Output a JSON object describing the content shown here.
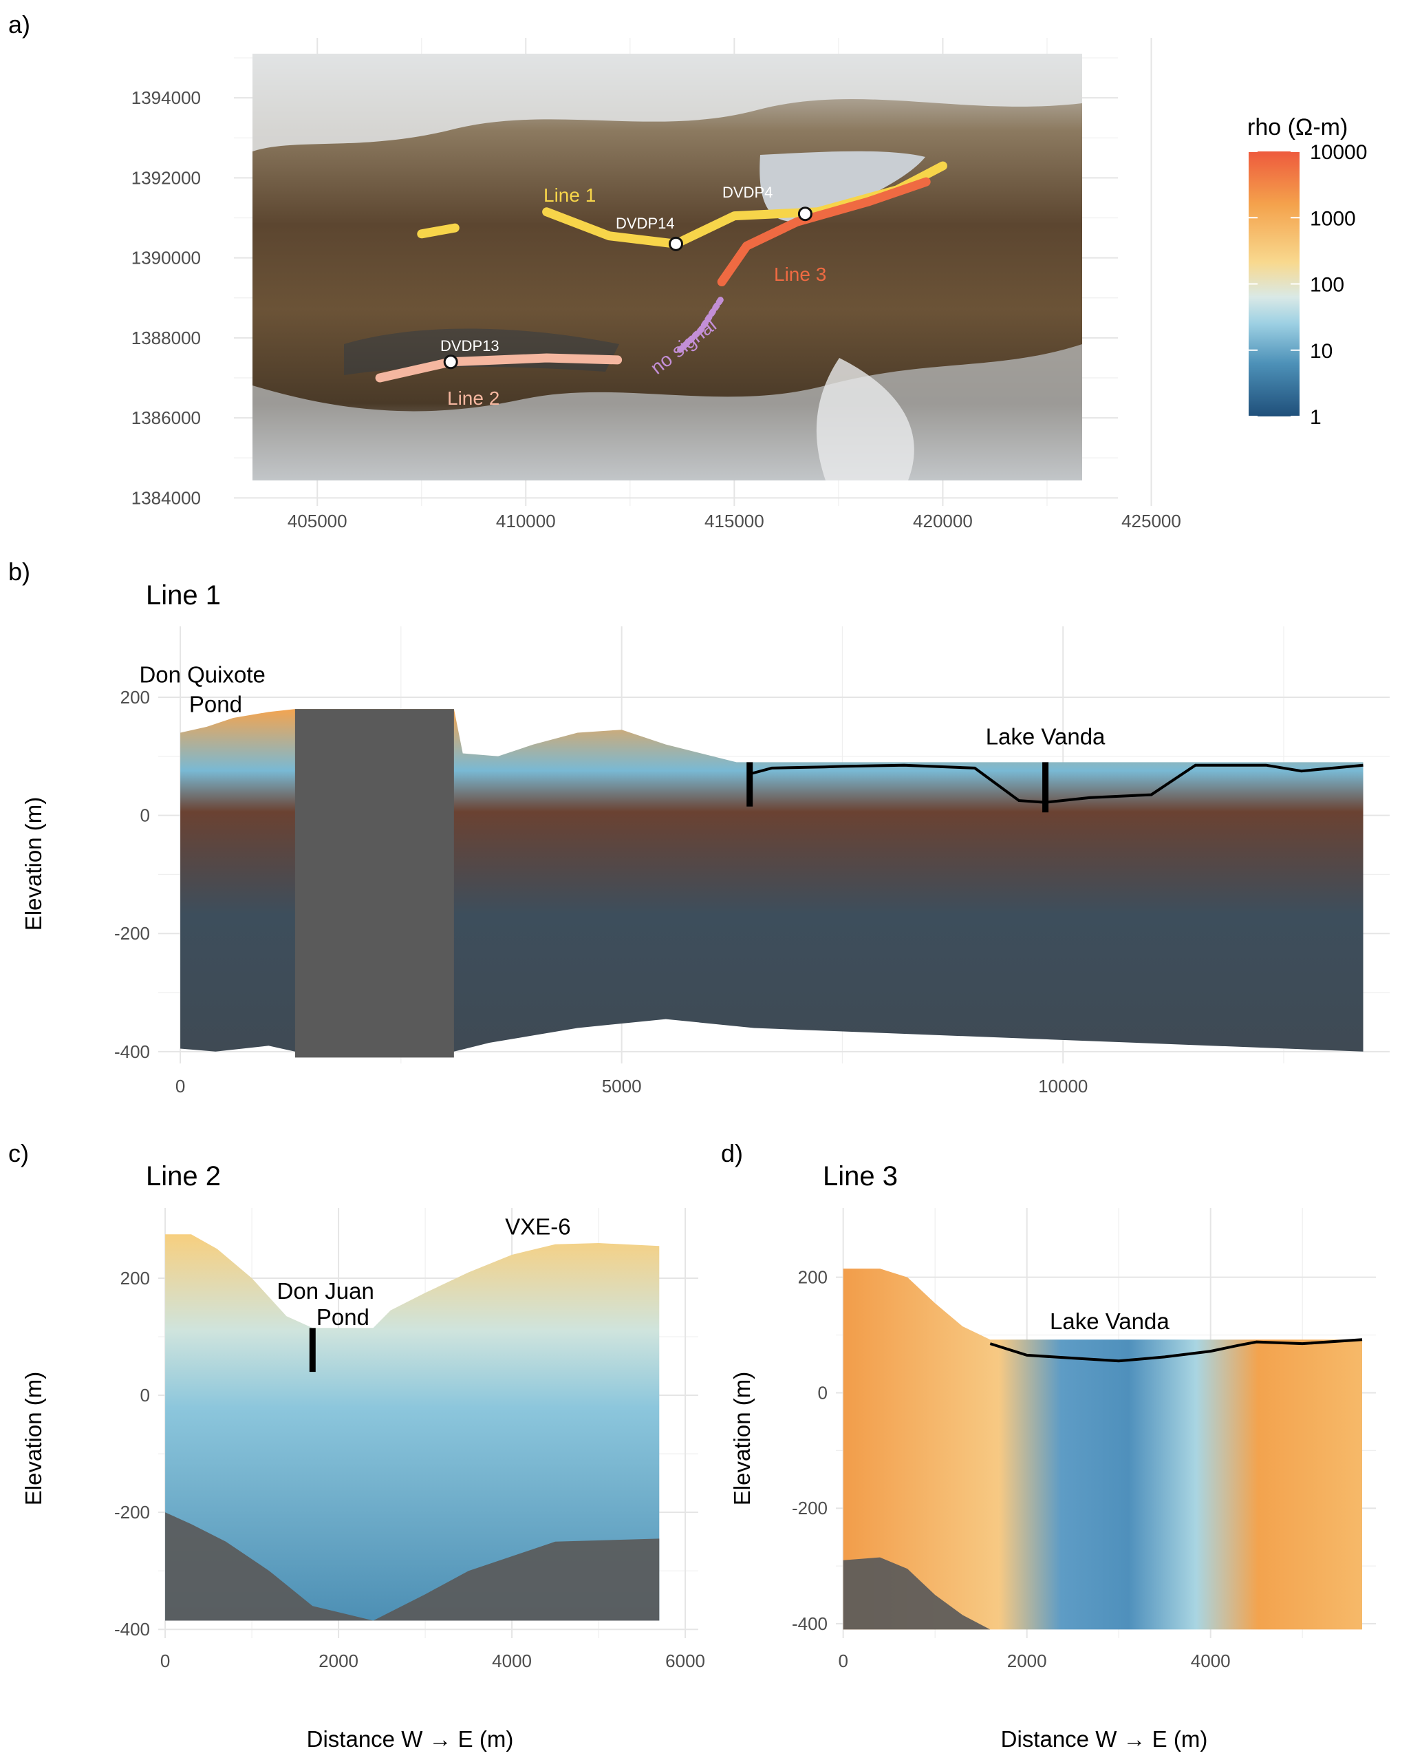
{
  "panel_labels": {
    "a": "a)",
    "b": "b)",
    "c": "c)",
    "d": "d)"
  },
  "colors": {
    "line1": "#f7d54a",
    "line2": "#f5b7a0",
    "line3": "#ef6a42",
    "no_signal": "#c38fd6",
    "lake": "#c9ced3",
    "masked": "#5a5a5a",
    "grid": "#e5e5e5"
  },
  "colorbar": {
    "title": "rho (Ω-m)",
    "scale": "log10",
    "ticks": [
      "10000",
      "1000",
      "100",
      "10",
      "1"
    ],
    "tick_values": [
      10000,
      1000,
      100,
      10,
      1
    ],
    "colors": [
      "#ee5a3d",
      "#f4a24c",
      "#f8d98f",
      "#a7d7e6",
      "#4d91b8",
      "#1f4f7a"
    ]
  },
  "chart_data": [
    {
      "id": "a",
      "type": "map",
      "x_ticks": [
        "405000",
        "410000",
        "415000",
        "420000",
        "425000"
      ],
      "y_ticks": [
        "1394000",
        "1392000",
        "1390000",
        "1388000",
        "1386000",
        "1384000"
      ],
      "xlim": [
        403000,
        424200
      ],
      "ylim": [
        1383800,
        1395500
      ],
      "image_extent": {
        "x": [
          404300,
          425500
        ],
        "y": [
          1384400,
          1395400
        ]
      },
      "lines": [
        {
          "name": "Line 1",
          "label": "Line 1",
          "segments": [
            [
              [
                407500,
                1390600
              ],
              [
                408300,
                1390750
              ]
            ],
            [
              [
                410500,
                1391150
              ],
              [
                412000,
                1390550
              ],
              [
                413600,
                1390350
              ],
              [
                415000,
                1391050
              ],
              [
                417000,
                1391150
              ],
              [
                418900,
                1391700
              ],
              [
                420000,
                1392300
              ]
            ]
          ]
        },
        {
          "name": "Line 2",
          "label": "Line 2",
          "segments": [
            [
              [
                406500,
                1387000
              ],
              [
                408200,
                1387400
              ],
              [
                410500,
                1387500
              ],
              [
                412200,
                1387450
              ]
            ]
          ]
        },
        {
          "name": "Line 3",
          "label": "Line 3",
          "segments": [
            [
              [
                414700,
                1389400
              ],
              [
                415300,
                1390300
              ],
              [
                416500,
                1390900
              ],
              [
                418200,
                1391400
              ],
              [
                419600,
                1391900
              ]
            ]
          ]
        },
        {
          "name": "no signal",
          "label": "no signal",
          "segments": [
            [
              [
                413700,
                1387700
              ],
              [
                414200,
                1388200
              ],
              [
                414700,
                1389000
              ]
            ]
          ]
        }
      ],
      "boreholes": [
        {
          "label": "DVDP14",
          "x": 413600,
          "y": 1390350
        },
        {
          "label": "DVDP4",
          "x": 416700,
          "y": 1391100
        },
        {
          "label": "DVDP13",
          "x": 408200,
          "y": 1387400
        }
      ]
    },
    {
      "id": "b",
      "type": "heatmap",
      "title": "Line 1",
      "xlabel": "",
      "ylabel": "Elevation (m)",
      "xlim": [
        -250,
        13700
      ],
      "ylim": [
        -420,
        320
      ],
      "x_ticks": [
        0,
        5000,
        10000
      ],
      "y_ticks": [
        200,
        0,
        -200,
        -400
      ],
      "x_minor": [
        2500,
        7500,
        12500
      ],
      "y_minor": [
        100,
        -100,
        -300
      ],
      "data_x": [
        0,
        13400
      ],
      "surface": [
        [
          0,
          140
        ],
        [
          300,
          150
        ],
        [
          600,
          165
        ],
        [
          1000,
          175
        ],
        [
          1300,
          180
        ],
        [
          3100,
          180
        ],
        [
          3200,
          105
        ],
        [
          3600,
          100
        ],
        [
          4000,
          120
        ],
        [
          4500,
          140
        ],
        [
          5000,
          145
        ],
        [
          5500,
          120
        ],
        [
          6300,
          90
        ],
        [
          13400,
          90
        ]
      ],
      "base": [
        [
          0,
          -395
        ],
        [
          400,
          -400
        ],
        [
          1000,
          -390
        ],
        [
          1300,
          -400
        ],
        [
          3100,
          -400
        ],
        [
          3500,
          -385
        ],
        [
          4500,
          -360
        ],
        [
          5500,
          -345
        ],
        [
          6500,
          -360
        ],
        [
          13400,
          -400
        ]
      ],
      "masked_block": {
        "x": [
          1300,
          3100
        ],
        "y": [
          -410,
          180
        ]
      },
      "lake_profile": [
        [
          6450,
          70
        ],
        [
          6700,
          80
        ],
        [
          7300,
          82
        ],
        [
          7500,
          83
        ],
        [
          8200,
          85
        ],
        [
          9000,
          80
        ],
        [
          9500,
          25
        ],
        [
          9800,
          22
        ],
        [
          10300,
          30
        ],
        [
          11000,
          35
        ],
        [
          11500,
          85
        ],
        [
          12300,
          85
        ],
        [
          12700,
          75
        ],
        [
          13400,
          85
        ]
      ],
      "borehole_bars": [
        {
          "x": 6450,
          "y0": 90,
          "y1": 15
        },
        {
          "x": 9800,
          "y0": 90,
          "y1": 5
        }
      ],
      "annotations": [
        {
          "text": "Don Quixote",
          "x": 250,
          "y": 225
        },
        {
          "text": "Pond",
          "x": 400,
          "y": 175
        },
        {
          "text": "Lake Vanda",
          "x": 9800,
          "y": 120
        }
      ]
    },
    {
      "id": "c",
      "type": "heatmap",
      "title": "Line 2",
      "xlabel": "Distance W → E (m)",
      "ylabel": "Elevation (m)",
      "xlim": [
        -80,
        6150
      ],
      "ylim": [
        -415,
        320
      ],
      "x_ticks": [
        0,
        2000,
        4000,
        6000
      ],
      "y_ticks": [
        200,
        0,
        -200,
        -400
      ],
      "x_minor": [
        1000,
        3000,
        5000
      ],
      "y_minor": [
        100,
        -100,
        -300
      ],
      "data_x": [
        0,
        5700
      ],
      "surface": [
        [
          0,
          275
        ],
        [
          300,
          275
        ],
        [
          600,
          250
        ],
        [
          1000,
          200
        ],
        [
          1400,
          135
        ],
        [
          1700,
          115
        ],
        [
          2400,
          115
        ],
        [
          2600,
          145
        ],
        [
          3000,
          175
        ],
        [
          3500,
          210
        ],
        [
          4000,
          240
        ],
        [
          4500,
          258
        ],
        [
          5000,
          260
        ],
        [
          5700,
          255
        ]
      ],
      "base": [
        [
          0,
          -385
        ],
        [
          5700,
          -385
        ]
      ],
      "bedrock": [
        [
          0,
          -200
        ],
        [
          300,
          -220
        ],
        [
          700,
          -250
        ],
        [
          1200,
          -300
        ],
        [
          1700,
          -360
        ],
        [
          2400,
          -385
        ],
        [
          3000,
          -340
        ],
        [
          3500,
          -300
        ],
        [
          4000,
          -275
        ],
        [
          4500,
          -250
        ],
        [
          5700,
          -245
        ]
      ],
      "borehole_bars": [
        {
          "x": 1700,
          "y0": 115,
          "y1": 40
        }
      ],
      "annotations": [
        {
          "text": "Don Juan",
          "x": 1850,
          "y": 165
        },
        {
          "text": "Pond",
          "x": 2050,
          "y": 120
        },
        {
          "text": "VXE-6",
          "x": 4300,
          "y": 275
        }
      ]
    },
    {
      "id": "d",
      "type": "heatmap",
      "title": "Line 3",
      "xlabel": "Distance W → E (m)",
      "ylabel": "Elevation (m)",
      "xlim": [
        -80,
        5800
      ],
      "ylim": [
        -425,
        320
      ],
      "x_ticks": [
        0,
        2000,
        4000
      ],
      "y_ticks": [
        200,
        0,
        -200,
        -400
      ],
      "x_minor": [
        1000,
        3000,
        5000
      ],
      "y_minor": [
        100,
        -100,
        -300
      ],
      "data_x": [
        0,
        5650
      ],
      "surface": [
        [
          0,
          215
        ],
        [
          400,
          215
        ],
        [
          700,
          200
        ],
        [
          1000,
          155
        ],
        [
          1300,
          115
        ],
        [
          1600,
          92
        ],
        [
          5650,
          92
        ]
      ],
      "base": [
        [
          0,
          -410
        ],
        [
          5650,
          -410
        ]
      ],
      "bedrock": [
        [
          0,
          -290
        ],
        [
          400,
          -285
        ],
        [
          700,
          -305
        ],
        [
          1000,
          -350
        ],
        [
          1300,
          -385
        ],
        [
          1600,
          -410
        ],
        [
          5650,
          -410
        ]
      ],
      "lake_profile": [
        [
          1600,
          85
        ],
        [
          2000,
          65
        ],
        [
          2500,
          60
        ],
        [
          3000,
          55
        ],
        [
          3500,
          62
        ],
        [
          4000,
          72
        ],
        [
          4300,
          82
        ],
        [
          4500,
          88
        ],
        [
          5000,
          85
        ],
        [
          5650,
          92
        ]
      ],
      "annotations": [
        {
          "text": "Lake Vanda",
          "x": 2900,
          "y": 110
        }
      ]
    }
  ]
}
